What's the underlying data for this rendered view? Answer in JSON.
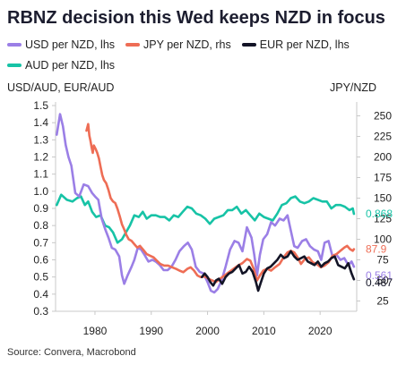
{
  "title": "RBNZ decision this Wed keeps NZD in focus",
  "source": "Source: Convera, Macrobond",
  "colors": {
    "usd": "#9b7fe6",
    "jpy": "#ee6d55",
    "eur": "#131426",
    "aud": "#17c3a6",
    "axis": "#c8c8c8",
    "text": "#222222"
  },
  "chart_data": {
    "type": "line",
    "title": "RBNZ decision this Wed keeps NZD in focus",
    "left_axis_title": "USD/AUD, EUR/AUD",
    "right_axis_title": "JPY/NZD",
    "xlim": [
      1973,
      2026.5
    ],
    "x_ticks": [
      1980,
      1990,
      2000,
      2010,
      2020
    ],
    "ylim_left": [
      0.3,
      1.5
    ],
    "left_ticks": [
      0.3,
      0.4,
      0.5,
      0.6,
      0.7,
      0.8,
      0.9,
      1.0,
      1.1,
      1.2,
      1.3,
      1.4,
      1.5
    ],
    "left_tick_labels": [
      "0.3",
      "0.4",
      "0.5",
      "0.6",
      "0.7",
      "0.8",
      "0.9",
      "1.0",
      "1.1",
      "1.2",
      "1.3",
      "1.4",
      "1.5"
    ],
    "ylim_right": [
      12.5,
      262.5
    ],
    "right_ticks": [
      25,
      50,
      75,
      100,
      125,
      150,
      175,
      200,
      225,
      250
    ],
    "right_tick_labels": [
      "25",
      "50",
      "75",
      "100",
      "125",
      "150",
      "175",
      "200",
      "225",
      "250"
    ],
    "grid": false,
    "legend_position": "top",
    "series": [
      {
        "name": "USD per NZD, lhs",
        "axis": "left",
        "color": "#9b7fe6",
        "last_label": "0.561",
        "x": [
          1973.2,
          1973.8,
          1974.3,
          1974.8,
          1975.3,
          1975.8,
          1976.5,
          1977.2,
          1978.0,
          1978.8,
          1979.5,
          1980.0,
          1980.6,
          1981.2,
          1981.8,
          1982.4,
          1983.0,
          1983.6,
          1984.3,
          1984.8,
          1985.2,
          1985.8,
          1986.5,
          1987.0,
          1987.6,
          1988.2,
          1988.8,
          1989.5,
          1990.2,
          1990.8,
          1991.5,
          1992.2,
          1992.9,
          1993.6,
          1994.3,
          1995.0,
          1995.8,
          1996.5,
          1997.2,
          1997.9,
          1998.6,
          1999.3,
          2000.0,
          2000.6,
          2001.2,
          2001.8,
          2002.5,
          2003.2,
          2004.0,
          2004.8,
          2005.5,
          2006.2,
          2007.0,
          2007.8,
          2008.3,
          2008.8,
          2009.3,
          2009.9,
          2010.6,
          2011.3,
          2012.0,
          2012.8,
          2013.5,
          2014.2,
          2014.8,
          2015.4,
          2016.0,
          2016.8,
          2017.5,
          2018.2,
          2018.9,
          2019.6,
          2020.2,
          2020.8,
          2021.5,
          2022.2,
          2022.9,
          2023.6,
          2024.3,
          2025.0,
          2025.6,
          2026.0
        ],
        "y": [
          1.33,
          1.45,
          1.38,
          1.27,
          1.2,
          1.15,
          0.99,
          0.97,
          1.04,
          1.03,
          0.99,
          0.97,
          0.95,
          0.84,
          0.78,
          0.73,
          0.67,
          0.66,
          0.62,
          0.51,
          0.46,
          0.51,
          0.56,
          0.6,
          0.67,
          0.66,
          0.63,
          0.59,
          0.6,
          0.59,
          0.57,
          0.54,
          0.54,
          0.56,
          0.6,
          0.65,
          0.68,
          0.7,
          0.66,
          0.56,
          0.53,
          0.52,
          0.47,
          0.42,
          0.41,
          0.43,
          0.48,
          0.56,
          0.66,
          0.71,
          0.7,
          0.65,
          0.79,
          0.73,
          0.63,
          0.51,
          0.63,
          0.72,
          0.75,
          0.82,
          0.8,
          0.84,
          0.83,
          0.86,
          0.77,
          0.68,
          0.67,
          0.71,
          0.72,
          0.68,
          0.66,
          0.65,
          0.6,
          0.7,
          0.71,
          0.62,
          0.63,
          0.6,
          0.61,
          0.57,
          0.59,
          0.56
        ]
      },
      {
        "name": "JPY per NZD, rhs",
        "axis": "right",
        "color": "#ee6d55",
        "last_label": "87.9",
        "x": [
          1978.5,
          1978.8,
          1979.0,
          1979.2,
          1979.4,
          1979.6,
          1979.8,
          1980.1,
          1980.4,
          1980.7,
          1981.0,
          1981.3,
          1981.6,
          1982.0,
          1982.4,
          1982.8,
          1983.2,
          1983.6,
          1984.0,
          1984.4,
          1984.8,
          1985.2,
          1985.6,
          1986.0,
          1986.5,
          1987.0,
          1987.5,
          1988.0,
          1988.6,
          1989.2,
          1989.8,
          1990.4,
          1991.0,
          1991.6,
          1992.3,
          1993.0,
          1993.7,
          1994.4,
          1995.0,
          1995.7,
          1996.4,
          1997.0,
          1997.6,
          1998.2,
          1998.8,
          1999.5,
          2000.2,
          2000.8,
          2001.5,
          2002.2,
          2003.0,
          2003.8,
          2004.6,
          2005.4,
          2006.2,
          2007.0,
          2007.6,
          2008.2,
          2008.8,
          2009.3,
          2009.9,
          2010.6,
          2011.3,
          2012.0,
          2012.8,
          2013.5,
          2014.2,
          2014.8,
          2015.4,
          2016.0,
          2016.6,
          2017.3,
          2018.0,
          2018.7,
          2019.4,
          2020.1,
          2020.8,
          2021.5,
          2022.2,
          2022.9,
          2023.6,
          2024.3,
          2024.8,
          2025.3,
          2025.8,
          2026.0
        ],
        "y": [
          232,
          240,
          226,
          220,
          212,
          205,
          214,
          210,
          205,
          198,
          188,
          178,
          172,
          168,
          160,
          150,
          146,
          144,
          137,
          128,
          118,
          112,
          105,
          100,
          98,
          94,
          90,
          92,
          87,
          82,
          80,
          78,
          74,
          70,
          68,
          68,
          66,
          64,
          62,
          60,
          64,
          66,
          62,
          56,
          54,
          55,
          52,
          50,
          48,
          52,
          56,
          60,
          64,
          68,
          71,
          76,
          74,
          64,
          50,
          56,
          62,
          64,
          62,
          66,
          70,
          78,
          84,
          86,
          84,
          78,
          70,
          76,
          78,
          72,
          70,
          66,
          68,
          72,
          80,
          82,
          86,
          90,
          92,
          88,
          86,
          87.9
        ]
      },
      {
        "name": "EUR per NZD, lhs",
        "axis": "left",
        "color": "#131426",
        "last_label": "0.487",
        "x": [
          1999.0,
          1999.5,
          2000.0,
          2000.5,
          2001.0,
          2001.5,
          2002.0,
          2002.6,
          2003.2,
          2003.8,
          2004.4,
          2005.0,
          2005.6,
          2006.2,
          2006.8,
          2007.4,
          2008.0,
          2008.6,
          2009.0,
          2009.5,
          2010.0,
          2010.6,
          2011.2,
          2011.8,
          2012.4,
          2013.0,
          2013.6,
          2014.2,
          2014.8,
          2015.4,
          2016.0,
          2016.6,
          2017.2,
          2017.8,
          2018.4,
          2019.0,
          2019.6,
          2020.2,
          2020.8,
          2021.4,
          2022.0,
          2022.6,
          2023.2,
          2023.8,
          2024.4,
          2025.0,
          2025.6,
          2026.0
        ],
        "y": [
          0.5,
          0.52,
          0.5,
          0.47,
          0.45,
          0.48,
          0.49,
          0.46,
          0.5,
          0.52,
          0.53,
          0.55,
          0.57,
          0.52,
          0.53,
          0.56,
          0.53,
          0.47,
          0.42,
          0.47,
          0.52,
          0.55,
          0.56,
          0.58,
          0.6,
          0.63,
          0.61,
          0.62,
          0.65,
          0.62,
          0.6,
          0.61,
          0.62,
          0.59,
          0.58,
          0.57,
          0.59,
          0.56,
          0.58,
          0.59,
          0.61,
          0.62,
          0.57,
          0.56,
          0.55,
          0.58,
          0.52,
          0.487
        ]
      },
      {
        "name": "AUD per NZD, lhs",
        "axis": "left",
        "color": "#17c3a6",
        "last_label": "0.868",
        "x": [
          1973.2,
          1974.0,
          1975.0,
          1976.0,
          1976.8,
          1977.5,
          1978.2,
          1978.8,
          1979.5,
          1980.2,
          1981.0,
          1981.8,
          1982.5,
          1983.2,
          1984.0,
          1984.8,
          1985.5,
          1986.2,
          1987.0,
          1987.8,
          1988.5,
          1989.2,
          1990.0,
          1990.8,
          1991.6,
          1992.4,
          1993.2,
          1994.0,
          1994.8,
          1995.6,
          1996.4,
          1997.2,
          1998.0,
          1998.8,
          1999.6,
          2000.4,
          2001.2,
          2002.0,
          2002.8,
          2003.6,
          2004.4,
          2005.2,
          2006.0,
          2006.8,
          2007.6,
          2008.4,
          2009.2,
          2010.0,
          2010.8,
          2011.6,
          2012.4,
          2013.2,
          2014.0,
          2014.8,
          2015.6,
          2016.4,
          2017.2,
          2018.0,
          2018.8,
          2019.6,
          2020.4,
          2021.2,
          2022.0,
          2022.8,
          2023.6,
          2024.4,
          2025.2,
          2025.8,
          2026.0
        ],
        "y": [
          0.92,
          0.98,
          0.95,
          0.94,
          0.96,
          0.97,
          0.92,
          0.94,
          0.88,
          0.85,
          0.86,
          0.8,
          0.79,
          0.76,
          0.7,
          0.72,
          0.76,
          0.8,
          0.86,
          0.85,
          0.88,
          0.84,
          0.86,
          0.86,
          0.85,
          0.85,
          0.83,
          0.86,
          0.85,
          0.88,
          0.91,
          0.9,
          0.87,
          0.86,
          0.84,
          0.81,
          0.84,
          0.85,
          0.86,
          0.89,
          0.89,
          0.91,
          0.87,
          0.89,
          0.86,
          0.83,
          0.87,
          0.85,
          0.84,
          0.83,
          0.87,
          0.92,
          0.93,
          0.96,
          0.97,
          0.94,
          0.93,
          0.94,
          0.96,
          0.95,
          0.94,
          0.94,
          0.9,
          0.92,
          0.92,
          0.91,
          0.89,
          0.9,
          0.868
        ]
      }
    ]
  }
}
